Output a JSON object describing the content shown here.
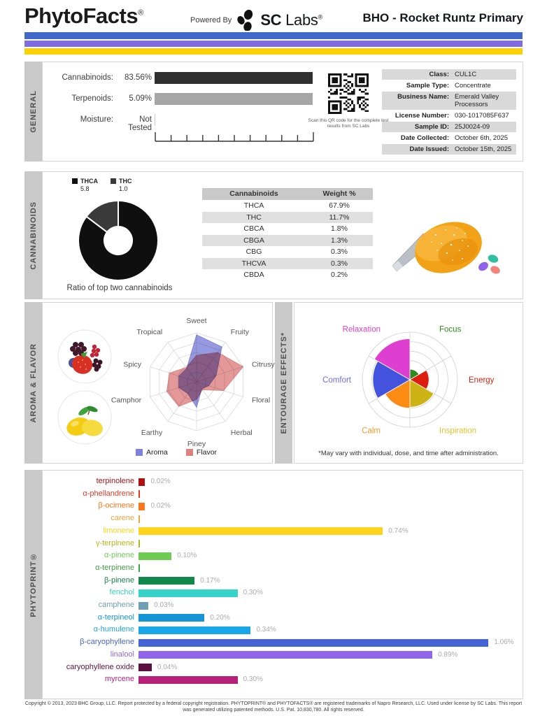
{
  "header": {
    "brand": "PhytoFacts",
    "brand_reg": "®",
    "powered_by": "Powered By",
    "lab_name_bold": "SC",
    "lab_name_rest": " Labs",
    "lab_reg": "®",
    "report_title": "BHO - Rocket Runtz Primary",
    "stripe_colors": [
      "#4169C9",
      "#7E6CE0",
      "#FBD104"
    ]
  },
  "general": {
    "tab": "GENERAL",
    "rows": [
      {
        "label": "Cannabinoids:",
        "value": "83.56%",
        "bar": true,
        "bar_color": "#2F2F2F"
      },
      {
        "label": "Terpenoids:",
        "value": "5.09%",
        "bar": true,
        "bar_color": "#A6A6A6"
      },
      {
        "label": "Moisture:",
        "value": "Not Tested",
        "bar": false,
        "bar_color": ""
      }
    ],
    "qr_caption": "Scan this QR code for the complete test results from SC Labs",
    "info": [
      {
        "label": "Class:",
        "value": "CUL1C"
      },
      {
        "label": "Sample Type:",
        "value": "Concentrate"
      },
      {
        "label": "Business Name:",
        "value": "Emerald Valley Processors"
      },
      {
        "label": "License Number:",
        "value": "030-1017085F637"
      },
      {
        "label": "Sample ID:",
        "value": "25J0024-09"
      },
      {
        "label": "Date Collected:",
        "value": "October 6th, 2025"
      },
      {
        "label": "Date Issued:",
        "value": "October 15th, 2025"
      }
    ]
  },
  "cannabinoids": {
    "tab": "CANNABINOIDS",
    "donut_caption": "Ratio of top two cannabinoids",
    "donut_legend": [
      {
        "name": "THCA",
        "value": "5.8",
        "color": "#0F0F0F"
      },
      {
        "name": "THC",
        "value": "1.0",
        "color": "#3A3A3A"
      }
    ],
    "table": {
      "headers": [
        "Cannabinoids",
        "Weight %"
      ],
      "rows": [
        [
          "THCA",
          "67.9%"
        ],
        [
          "THC",
          "11.7%"
        ],
        [
          "CBCA",
          "1.8%"
        ],
        [
          "CBGA",
          "1.3%"
        ],
        [
          "CBG",
          "0.3%"
        ],
        [
          "THCVA",
          "0.3%"
        ],
        [
          "CBDA",
          "0.2%"
        ]
      ]
    }
  },
  "aroma_flavor": {
    "tab": "AROMA & FLAVOR"
  },
  "entourage": {
    "tab": "ENTOURAGE EFFECTS*",
    "footnote": "*May vary with individual, dose, and time after administration."
  },
  "phytoprint": {
    "tab": "PHYTOPRINT®"
  },
  "footer": {
    "line1": "Copyright © 2013, 2023 BHC Group, LLC. Report protected by a federal copyright registration. PHYTOPRINT® and PHYTOFACTS® are registered trademarks of Napro Research, LLC. Used under license by SC Labs. This report",
    "line2": "was generated utilizing patented methods. U.S. Pat. 10,830,780. All rights reserved."
  },
  "chart_data": [
    {
      "id": "general_levels",
      "type": "bar",
      "orientation": "horizontal",
      "categories": [
        "Cannabinoids",
        "Terpenoids"
      ],
      "values": [
        83.56,
        5.09
      ],
      "unit": "%"
    },
    {
      "id": "cannabinoid_ratio_donut",
      "type": "pie",
      "donut": true,
      "title": "Ratio of top two cannabinoids",
      "categories": [
        "THCA",
        "THC"
      ],
      "values": [
        5.8,
        1.0
      ],
      "colors": [
        "#0F0F0F",
        "#3A3A3A"
      ],
      "legend_position": "top"
    },
    {
      "id": "aroma_flavor_radar",
      "type": "line",
      "variant": "radar",
      "categories": [
        "Sweet",
        "Fruity",
        "Citrusy",
        "Floral",
        "Herbal",
        "Piney",
        "Earthy",
        "Camphor",
        "Spicy",
        "Tropical"
      ],
      "series": [
        {
          "name": "Aroma",
          "color": "#7F82D9",
          "values": [
            4.8,
            4.4,
            2.1,
            1.3,
            0.9,
            2.6,
            1.5,
            1.9,
            1.9,
            1.7
          ]
        },
        {
          "name": "Flavor",
          "color": "#DE8181",
          "values": [
            2.7,
            3.7,
            5.0,
            2.9,
            1.0,
            1.8,
            3.1,
            3.2,
            2.9,
            1.8
          ]
        }
      ],
      "rmax": 5,
      "rings": 5,
      "grid": true,
      "legend_position": "bottom"
    },
    {
      "id": "entourage_polar",
      "type": "pie",
      "variant": "polar_area",
      "categories": [
        "Focus",
        "Energy",
        "Inspiration",
        "Calm",
        "Comfort",
        "Relaxation"
      ],
      "values": [
        1.1,
        2.0,
        2.9,
        3.0,
        3.9,
        4.3
      ],
      "colors": [
        "#2E8B1E",
        "#DD1F0F",
        "#CDB414",
        "#FB8B12",
        "#4353DE",
        "#DE3FD0"
      ],
      "label_colors": [
        "#2E8B1E",
        "#DD1F0F",
        "#E3C52F",
        "#F9992C",
        "#6B6BE8",
        "#D944C8"
      ],
      "rmax": 5,
      "rings": 5,
      "start_angle_deg": 0,
      "clockwise": true
    },
    {
      "id": "phytoprint_terpenes",
      "type": "bar",
      "orientation": "horizontal",
      "xlim": [
        0,
        1.1
      ],
      "categories": [
        "terpinolene",
        "α-phellandrene",
        "β-ocimene",
        "carene",
        "limonene",
        "γ-terpinene",
        "α-pinene",
        "α-terpinene",
        "β-pinene",
        "fenchol",
        "camphene",
        "α-terpineol",
        "α-humulene",
        "β-caryophyllene",
        "linalool",
        "caryophyllene oxide",
        "myrcene"
      ],
      "values": [
        0.02,
        0,
        0.02,
        0,
        0.74,
        0,
        0.1,
        0,
        0.17,
        0.3,
        0.03,
        0.2,
        0.34,
        1.06,
        0.89,
        0.04,
        0.3
      ],
      "value_labels": [
        "0.02%",
        "",
        "0.02%",
        "",
        "0.74%",
        "",
        "0.10%",
        "",
        "0.17%",
        "0.30%",
        "0.03%",
        "0.20%",
        "0.34%",
        "1.06%",
        "0.89%",
        "0.04%",
        "0.30%"
      ],
      "colors": [
        "#B01010",
        "#E33A1E",
        "#FF7519",
        "#EDA33C",
        "#FFD31C",
        "#B5B520",
        "#6FCC53",
        "#3DA53E",
        "#12884A",
        "#36D3C9",
        "#6E9FB2",
        "#1495D6",
        "#17A6E8",
        "#4565D4",
        "#9066EA",
        "#5C1040",
        "#B81F78"
      ]
    }
  ]
}
